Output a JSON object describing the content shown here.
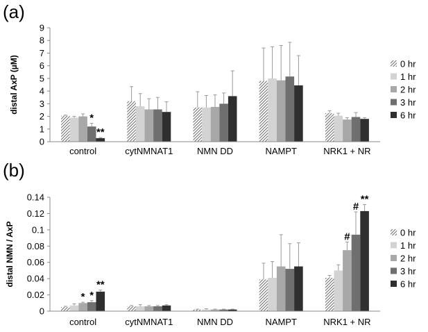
{
  "series_styles": [
    {
      "name": "0 hr",
      "fill": "url(#hatch)",
      "color": "#9a9a9a"
    },
    {
      "name": "1 hr",
      "fill": "#d3d3d3",
      "color": "#d3d3d3"
    },
    {
      "name": "2 hr",
      "fill": "#a8a8a8",
      "color": "#a8a8a8"
    },
    {
      "name": "3 hr",
      "fill": "#6f6f6f",
      "color": "#6f6f6f"
    },
    {
      "name": "6 hr",
      "fill": "#2f2f2f",
      "color": "#2f2f2f"
    }
  ],
  "chart_data": [
    {
      "panel_label": "(a)",
      "type": "bar",
      "title": "",
      "xlabel": "",
      "ylabel": "distal AxP (µM)",
      "ylim": [
        0,
        9
      ],
      "yticks": [
        "0",
        "1",
        "2",
        "3",
        "4",
        "5",
        "6",
        "7",
        "8",
        "9"
      ],
      "ytick_values": [
        0,
        1,
        2,
        3,
        4,
        5,
        6,
        7,
        8,
        9
      ],
      "categories": [
        "control",
        "cytNMNAT1",
        "NMN DD",
        "NAMPT",
        "NRK1 + NR"
      ],
      "legend_position": "right",
      "grid": false,
      "series": [
        {
          "name": "0 hr",
          "values": [
            2.05,
            3.2,
            2.7,
            4.8,
            2.25
          ],
          "errors": [
            0.05,
            1.15,
            1.25,
            2.6,
            0.2
          ]
        },
        {
          "name": "1 hr",
          "values": [
            1.9,
            2.8,
            2.7,
            5.0,
            2.05
          ],
          "errors": [
            0.1,
            1.0,
            0.95,
            2.5,
            0.2
          ]
        },
        {
          "name": "2 hr",
          "values": [
            2.0,
            2.55,
            2.75,
            4.85,
            1.75
          ],
          "errors": [
            0.2,
            0.85,
            0.95,
            2.75,
            0.15
          ]
        },
        {
          "name": "3 hr",
          "values": [
            1.2,
            2.55,
            3.0,
            5.15,
            1.95
          ],
          "errors": [
            0.25,
            0.95,
            0.85,
            2.7,
            0.35
          ]
        },
        {
          "name": "6 hr",
          "values": [
            0.28,
            2.35,
            3.6,
            4.45,
            1.8
          ],
          "errors": [
            0.05,
            0.8,
            2.0,
            2.35,
            0.1
          ]
        }
      ],
      "annotations": [
        {
          "category": "control",
          "series": "3 hr",
          "text": "*"
        },
        {
          "category": "control",
          "series": "6 hr",
          "text": "**"
        }
      ]
    },
    {
      "panel_label": "(b)",
      "type": "bar",
      "title": "",
      "xlabel": "",
      "ylabel": "distal NMN / AxP",
      "ylim": [
        0,
        0.14
      ],
      "yticks": [
        "0",
        "0.02",
        "0.04",
        "0.06",
        "0.08",
        "0.1",
        "0.12",
        "0.14"
      ],
      "ytick_values": [
        0,
        0.02,
        0.04,
        0.06,
        0.08,
        0.1,
        0.12,
        0.14
      ],
      "categories": [
        "control",
        "cytNMNAT1",
        "NMN DD",
        "NAMPT",
        "NRK1 + NR"
      ],
      "legend_position": "right",
      "grid": false,
      "series": [
        {
          "name": "0 hr",
          "values": [
            0.005,
            0.006,
            0.002,
            0.039,
            0.041
          ],
          "errors": [
            0.001,
            0.001,
            0.0005,
            0.02,
            0.003
          ]
        },
        {
          "name": "1 hr",
          "values": [
            0.007,
            0.006,
            0.002,
            0.041,
            0.05
          ],
          "errors": [
            0.002,
            0.002,
            0.001,
            0.02,
            0.007
          ]
        },
        {
          "name": "2 hr",
          "values": [
            0.01,
            0.006,
            0.002,
            0.055,
            0.075
          ],
          "errors": [
            0.001,
            0.001,
            0.0005,
            0.039,
            0.01
          ]
        },
        {
          "name": "3 hr",
          "values": [
            0.011,
            0.006,
            0.002,
            0.052,
            0.094
          ],
          "errors": [
            0.002,
            0.001,
            0.0005,
            0.031,
            0.028
          ]
        },
        {
          "name": "6 hr",
          "values": [
            0.024,
            0.007,
            0.002,
            0.055,
            0.123
          ],
          "errors": [
            0.002,
            0.001,
            0.0005,
            0.029,
            0.008
          ]
        }
      ],
      "annotations": [
        {
          "category": "control",
          "series": "2 hr",
          "text": "*"
        },
        {
          "category": "control",
          "series": "3 hr",
          "text": "*"
        },
        {
          "category": "control",
          "series": "6 hr",
          "text": "**"
        },
        {
          "category": "NRK1 + NR",
          "series": "2 hr",
          "text": "#"
        },
        {
          "category": "NRK1 + NR",
          "series": "3 hr",
          "text": "#"
        },
        {
          "category": "NRK1 + NR",
          "series": "6 hr",
          "text": "**"
        }
      ]
    }
  ]
}
